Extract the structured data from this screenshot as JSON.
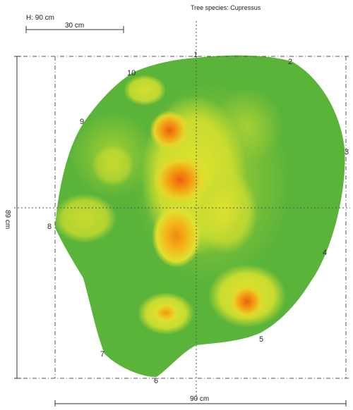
{
  "species_label": "Tree species: Cupressus",
  "height_label": "H: 90 cm",
  "scale_bar_label": "30 cm",
  "width_dimension_label": "90 cm",
  "depth_dimension_label": "89 cm",
  "sensor_points": [
    "1",
    "2",
    "3",
    "4",
    "5",
    "6",
    "7",
    "8",
    "9",
    "10"
  ],
  "colors": {
    "sound_wood": "#5bb43a",
    "moderate": "#d8e02e",
    "decay": "#f59a12",
    "severe_decay": "#e8620c",
    "guide_lines": "#555555"
  }
}
